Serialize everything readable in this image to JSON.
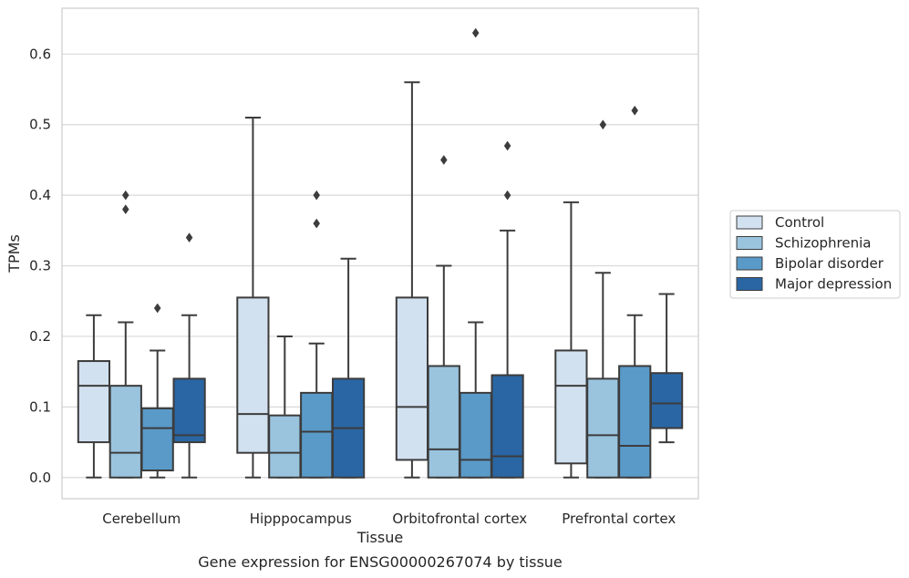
{
  "caption": "Gene expression for ENSG00000267074 by tissue",
  "chart_data": {
    "type": "box",
    "xlabel": "Tissue",
    "ylabel": "TPMs",
    "ylim": [
      -0.03,
      0.665
    ],
    "yticks": [
      "0.0",
      "0.1",
      "0.2",
      "0.3",
      "0.4",
      "0.5",
      "0.6"
    ],
    "grid": true,
    "legend_position": "right",
    "categories": [
      "Cerebellum",
      "Hipppocampus",
      "Orbitofrontal cortex",
      "Prefrontal cortex"
    ],
    "series": [
      {
        "name": "Control",
        "color": "#d2e1f0",
        "boxes": [
          {
            "whislo": 0.0,
            "q1": 0.05,
            "med": 0.13,
            "q3": 0.165,
            "whishi": 0.23,
            "fliers": []
          },
          {
            "whislo": 0.0,
            "q1": 0.035,
            "med": 0.09,
            "q3": 0.255,
            "whishi": 0.51,
            "fliers": []
          },
          {
            "whislo": 0.0,
            "q1": 0.025,
            "med": 0.1,
            "q3": 0.255,
            "whishi": 0.56,
            "fliers": []
          },
          {
            "whislo": 0.0,
            "q1": 0.02,
            "med": 0.13,
            "q3": 0.18,
            "whishi": 0.39,
            "fliers": []
          }
        ]
      },
      {
        "name": "Schizophrenia",
        "color": "#9ac4de",
        "boxes": [
          {
            "whislo": 0.0,
            "q1": 0.0,
            "med": 0.035,
            "q3": 0.13,
            "whishi": 0.22,
            "fliers": [
              0.4,
              0.38
            ]
          },
          {
            "whislo": 0.0,
            "q1": 0.0,
            "med": 0.035,
            "q3": 0.088,
            "whishi": 0.2,
            "fliers": []
          },
          {
            "whislo": 0.0,
            "q1": 0.0,
            "med": 0.04,
            "q3": 0.158,
            "whishi": 0.3,
            "fliers": [
              0.45
            ]
          },
          {
            "whislo": 0.0,
            "q1": 0.0,
            "med": 0.06,
            "q3": 0.14,
            "whishi": 0.29,
            "fliers": [
              0.5
            ]
          }
        ]
      },
      {
        "name": "Bipolar disorder",
        "color": "#5a9ac8",
        "boxes": [
          {
            "whislo": 0.0,
            "q1": 0.01,
            "med": 0.07,
            "q3": 0.098,
            "whishi": 0.18,
            "fliers": [
              0.24
            ]
          },
          {
            "whislo": 0.0,
            "q1": 0.0,
            "med": 0.065,
            "q3": 0.12,
            "whishi": 0.19,
            "fliers": [
              0.4,
              0.36
            ]
          },
          {
            "whislo": 0.0,
            "q1": 0.0,
            "med": 0.025,
            "q3": 0.12,
            "whishi": 0.22,
            "fliers": [
              0.63
            ]
          },
          {
            "whislo": 0.0,
            "q1": 0.0,
            "med": 0.045,
            "q3": 0.158,
            "whishi": 0.23,
            "fliers": [
              0.52
            ]
          }
        ]
      },
      {
        "name": "Major depression",
        "color": "#2a66a4",
        "boxes": [
          {
            "whislo": 0.0,
            "q1": 0.05,
            "med": 0.06,
            "q3": 0.14,
            "whishi": 0.23,
            "fliers": [
              0.34
            ]
          },
          {
            "whislo": 0.0,
            "q1": 0.0,
            "med": 0.07,
            "q3": 0.14,
            "whishi": 0.31,
            "fliers": []
          },
          {
            "whislo": 0.0,
            "q1": 0.0,
            "med": 0.03,
            "q3": 0.145,
            "whishi": 0.35,
            "fliers": [
              0.47,
              0.4
            ]
          },
          {
            "whislo": 0.05,
            "q1": 0.07,
            "med": 0.105,
            "q3": 0.148,
            "whishi": 0.26,
            "fliers": []
          }
        ]
      }
    ]
  }
}
